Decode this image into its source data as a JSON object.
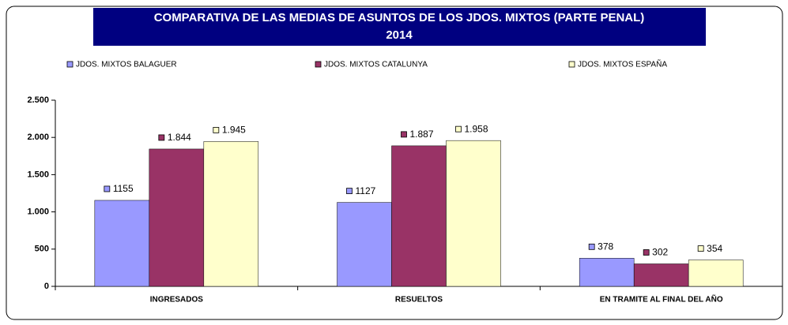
{
  "chart_data": {
    "type": "bar",
    "title": "COMPARATIVA DE LAS MEDIAS DE ASUNTOS DE  LOS JDOS. MIXTOS (PARTE PENAL)",
    "subtitle": "2014",
    "categories": [
      "INGRESADOS",
      "RESUELTOS",
      "EN TRAMITE AL FINAL DEL AÑO"
    ],
    "series": [
      {
        "name": "JDOS. MIXTOS BALAGUER",
        "color": "#9999ff",
        "values": [
          1155,
          1127,
          378
        ]
      },
      {
        "name": "JDOS. MIXTOS CATALUNYA",
        "color": "#993366",
        "values": [
          1844,
          1887,
          302
        ],
        "value_labels": [
          "1.844",
          "1.887",
          "302"
        ]
      },
      {
        "name": "JDOS. MIXTOS  ESPAÑA",
        "color": "#ffffcc",
        "values": [
          1945,
          1958,
          354
        ],
        "value_labels": [
          "1.945",
          "1.958",
          "354"
        ]
      }
    ],
    "ylim": [
      0,
      2500
    ],
    "yticks": [
      0,
      500,
      {
        "value": 1000,
        "label": "1.000"
      },
      {
        "value": 1500,
        "label": "1.500"
      },
      {
        "value": 2000,
        "label": "2.000"
      },
      {
        "value": 2500,
        "label": "2.500"
      }
    ],
    "grid": false,
    "legend": "top"
  }
}
